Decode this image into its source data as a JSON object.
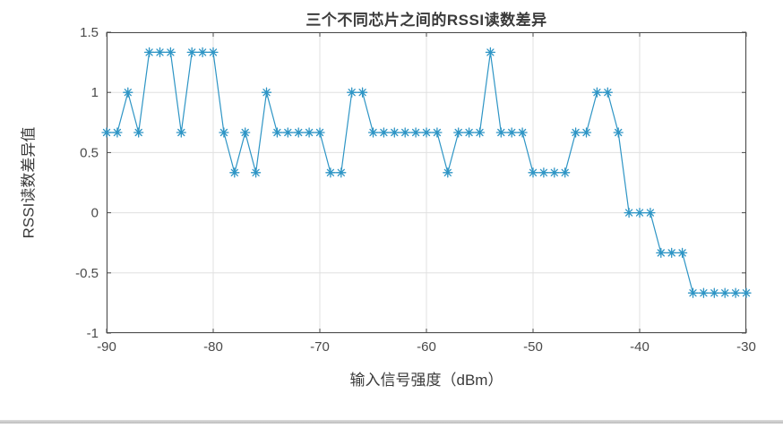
{
  "figure": {
    "title": "三个不同芯片之间的RSSI读数差异",
    "xlabel": "输入信号强度（dBm）",
    "ylabel": "RSSI读数差异值"
  },
  "chart_data": {
    "type": "line",
    "title": "三个不同芯片之间的RSSI读数差异",
    "xlabel": "输入信号强度（dBm）",
    "ylabel": "RSSI读数差异值",
    "marker": "asterisk",
    "grid": true,
    "legend": "none",
    "xlim": [
      -90,
      -30
    ],
    "ylim": [
      -1,
      1.5
    ],
    "x_ticks": [
      -90,
      -80,
      -70,
      -60,
      -50,
      -40,
      -30
    ],
    "x_tick_labels": [
      "-90",
      "-80",
      "-70",
      "-60",
      "-50",
      "-40",
      "-30"
    ],
    "y_ticks": [
      1.5,
      1,
      0.5,
      0,
      -0.5,
      -1
    ],
    "y_tick_labels": [
      "1.5",
      "1",
      "0.5",
      "0",
      "-0.5",
      "-1"
    ],
    "x": [
      -90,
      -89,
      -88,
      -87,
      -86,
      -85,
      -84,
      -83,
      -82,
      -81,
      -80,
      -79,
      -78,
      -77,
      -76,
      -75,
      -74,
      -73,
      -72,
      -71,
      -70,
      -69,
      -68,
      -67,
      -66,
      -65,
      -64,
      -63,
      -62,
      -61,
      -60,
      -59,
      -58,
      -57,
      -56,
      -55,
      -54,
      -53,
      -52,
      -51,
      -50,
      -49,
      -48,
      -47,
      -46,
      -45,
      -44,
      -43,
      -42,
      -41,
      -40,
      -39,
      -38,
      -37,
      -36,
      -35,
      -34,
      -33,
      -32,
      -31,
      -30
    ],
    "values": [
      0.6667,
      0.6667,
      1,
      0.6667,
      1.3333,
      1.3333,
      1.3333,
      0.6667,
      1.3333,
      1.3333,
      1.3333,
      0.6667,
      0.3333,
      0.6667,
      0.3333,
      1,
      0.6667,
      0.6667,
      0.6667,
      0.6667,
      0.6667,
      0.3333,
      0.3333,
      1,
      1,
      0.6667,
      0.6667,
      0.6667,
      0.6667,
      0.6667,
      0.6667,
      0.6667,
      0.3333,
      0.6667,
      0.6667,
      0.6667,
      1.3333,
      0.6667,
      0.6667,
      0.6667,
      0.3333,
      0.3333,
      0.3333,
      0.3333,
      0.6667,
      0.6667,
      1,
      1,
      0.6667,
      0,
      0,
      0,
      -0.3333,
      -0.3333,
      -0.3333,
      -0.6667,
      -0.6667,
      -0.6667,
      -0.6667,
      -0.6667,
      -0.6667
    ],
    "colors": {
      "line": "#2E95C5",
      "marker": "#2E95C5",
      "axis": "#4a4a4a",
      "grid": "#e0e0e0",
      "tick_text": "#4a4a4a",
      "label_text": "#3a3a3a",
      "background": "#ffffff"
    }
  }
}
